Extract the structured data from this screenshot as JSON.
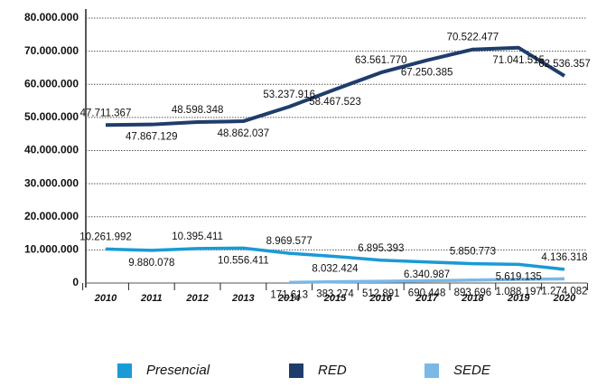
{
  "chart_data": {
    "type": "line",
    "categories": [
      "2010",
      "2011",
      "2012",
      "2013",
      "2014",
      "2015",
      "2016",
      "2017",
      "2018",
      "2019",
      "2020"
    ],
    "series": [
      {
        "name": "Presencial",
        "color": "#1a9ad6",
        "values": [
          10261992,
          9880078,
          10395411,
          10556411,
          8969577,
          8032424,
          6895393,
          6340987,
          5850773,
          5619135,
          4136318
        ],
        "value_labels": [
          "10.261.992",
          "9.880.078",
          "10.395.411",
          "10.556.411",
          "8.969.577",
          "8.032.424",
          "6.895.393",
          "6.340.987",
          "5.850.773",
          "5.619.135",
          "4.136.318"
        ]
      },
      {
        "name": "RED",
        "color": "#1f3d6b",
        "values": [
          47711367,
          47867129,
          48598348,
          48862037,
          53237916,
          58467523,
          63561770,
          67250385,
          70522477,
          71041515,
          62536357
        ],
        "value_labels": [
          "47.711.367",
          "47.867.129",
          "48.598.348",
          "48.862.037",
          "53.237.916",
          "58.467.523",
          "63.561.770",
          "67.250.385",
          "70.522.477",
          "71.041.515",
          "62.536.357"
        ]
      },
      {
        "name": "SEDE",
        "color": "#7ab8e6",
        "values": [
          null,
          null,
          null,
          null,
          171613,
          383274,
          512891,
          690448,
          893696,
          1088197,
          1274082
        ],
        "value_labels": [
          null,
          null,
          null,
          null,
          "171.613",
          "383.274",
          "512.891",
          "690.448",
          "893.696",
          "1.088.197",
          "1.274.082"
        ]
      }
    ],
    "ylim": [
      0,
      80000000
    ],
    "yticks": [
      0,
      {
        "value": 10000000,
        "label": "10.000.000"
      },
      {
        "value": 20000000,
        "label": "20.000.000"
      },
      {
        "value": 30000000,
        "label": "30.000.000"
      },
      {
        "value": 40000000,
        "label": "40.000.000"
      },
      {
        "value": 50000000,
        "label": "50.000.000"
      },
      {
        "value": 60000000,
        "label": "60.000.000"
      },
      {
        "value": 70000000,
        "label": "70.000.000"
      },
      {
        "value": 80000000,
        "label": "80.000.000"
      }
    ],
    "grid": true,
    "legend": "bottom"
  }
}
